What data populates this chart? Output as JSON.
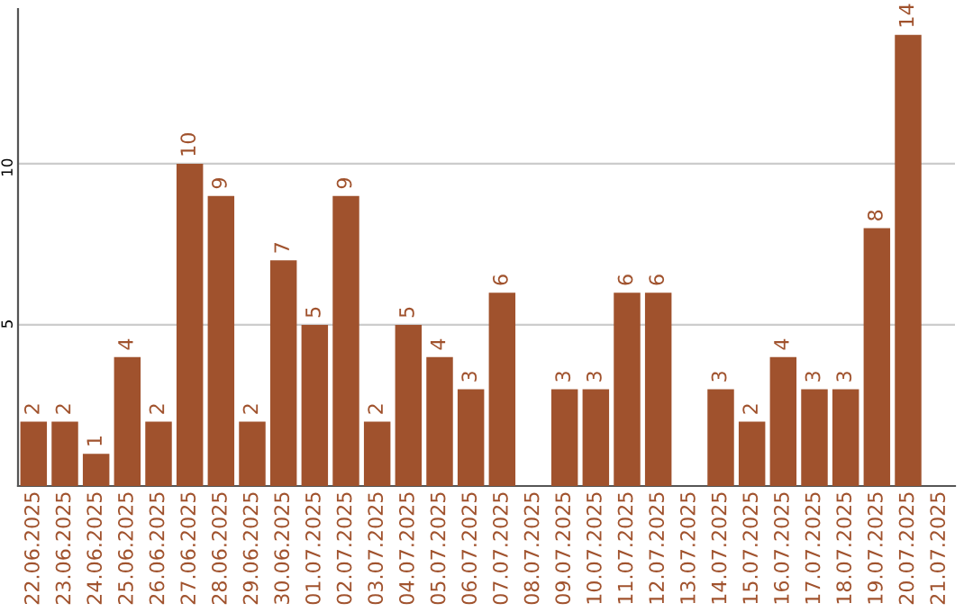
{
  "chart_data": {
    "type": "bar",
    "categories": [
      "22.06.2025",
      "23.06.2025",
      "24.06.2025",
      "25.06.2025",
      "26.06.2025",
      "27.06.2025",
      "28.06.2025",
      "29.06.2025",
      "30.06.2025",
      "01.07.2025",
      "02.07.2025",
      "03.07.2025",
      "04.07.2025",
      "05.07.2025",
      "06.07.2025",
      "07.07.2025",
      "08.07.2025",
      "09.07.2025",
      "10.07.2025",
      "11.07.2025",
      "12.07.2025",
      "13.07.2025",
      "14.07.2025",
      "15.07.2025",
      "16.07.2025",
      "17.07.2025",
      "18.07.2025",
      "19.07.2025",
      "20.07.2025",
      "21.07.2025"
    ],
    "values": [
      2,
      2,
      1,
      4,
      2,
      10,
      9,
      2,
      7,
      5,
      9,
      2,
      5,
      4,
      3,
      6,
      null,
      3,
      3,
      6,
      6,
      null,
      3,
      2,
      4,
      3,
      3,
      8,
      14,
      null
    ],
    "color": "#a0522d",
    "ylim": [
      0,
      14.8
    ],
    "yticks": [
      5,
      10
    ],
    "grid": "y",
    "data_labels": true
  }
}
